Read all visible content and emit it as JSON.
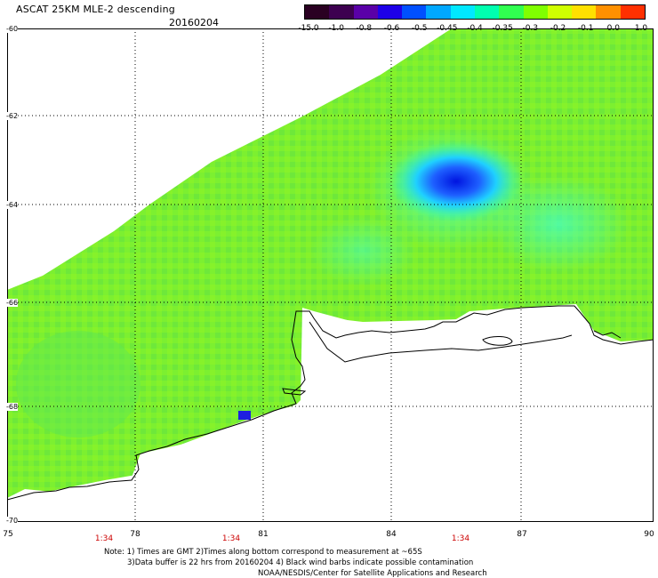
{
  "header": {
    "title": "ASCAT 25KM MLE-2 descending",
    "date": "20160204"
  },
  "colorbar": {
    "labels": [
      "-15.0",
      "-1.0",
      "-0.8",
      "-0.6",
      "-0.5",
      "-0.45",
      "-0.4",
      "-0.35",
      "-0.3",
      "-0.2",
      "-0.1",
      "0.0",
      "1.0"
    ],
    "colors": [
      "#2a0022",
      "#3d0050",
      "#5a00a8",
      "#1e00e8",
      "#0050ff",
      "#00a8ff",
      "#00e8ff",
      "#00ffb0",
      "#30ff50",
      "#80ff00",
      "#d0ff00",
      "#ffe000",
      "#ff9000",
      "#ff3000"
    ]
  },
  "axes": {
    "lat_labels": [
      "-60",
      "-62",
      "-64",
      "-66",
      "-68",
      "-70"
    ],
    "lon_labels": [
      "75",
      "78",
      "81",
      "84",
      "87",
      "90"
    ],
    "time_labels": [
      "1:34",
      "1:34",
      "1:34"
    ]
  },
  "notes": {
    "line1": "Note: 1) Times are GMT 2)Times along bottom correspond to measurement at ~65S",
    "line2": "3)Data buffer is 22 hrs from 20160204 4) Black wind barbs indicate possible contamination",
    "line3": "NOAA/NESDIS/Center for Satellite Applications and Research"
  }
}
